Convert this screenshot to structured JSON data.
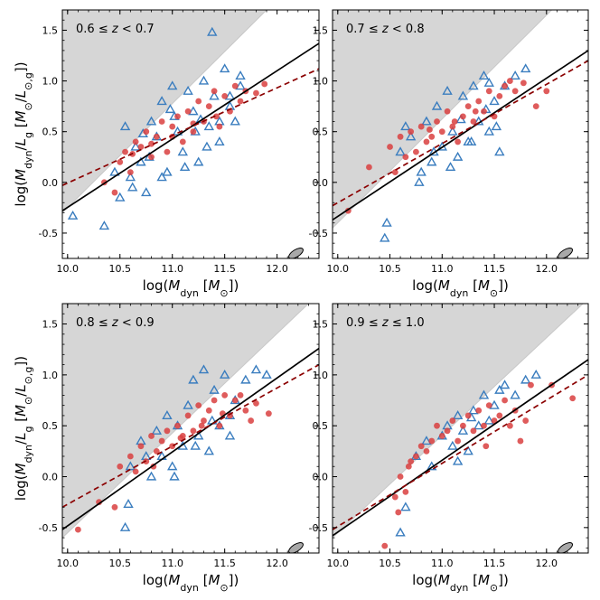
{
  "figure": {
    "xlabel": "log(M_dyn [M_⊙])",
    "ylabel": "log(M_dyn/L_g [M_⊙/L_⊙,g])"
  },
  "chart_data": [
    {
      "type": "scatter",
      "panel": "top-left",
      "title": "0.6 ≤ z < 0.7",
      "xlim": [
        9.95,
        12.4
      ],
      "ylim": [
        -0.75,
        1.7
      ],
      "xticks": [
        "10.0",
        "10.5",
        "11.0",
        "11.5",
        "12.0"
      ],
      "yticks": [
        "-0.5",
        "0.0",
        "0.5",
        "1.0",
        "1.5"
      ],
      "grey_region_boundary": {
        "x": [
          9.95,
          11.9
        ],
        "y": [
          -0.3,
          1.7
        ]
      },
      "fit_black_solid": {
        "x": [
          9.95,
          12.4
        ],
        "y": [
          -0.28,
          1.37
        ]
      },
      "fit_red_dashed": {
        "x": [
          9.95,
          12.4
        ],
        "y": [
          -0.03,
          1.12
        ]
      },
      "error_ellipse": {
        "x": 12.18,
        "y": -0.7
      },
      "series": [
        {
          "name": "blue triangles",
          "marker": "open-triangle",
          "color": "#3a7dbf",
          "x": [
            10.05,
            10.35,
            10.5,
            10.55,
            10.6,
            10.65,
            10.7,
            10.75,
            10.8,
            10.85,
            10.9,
            10.95,
            11.0,
            11.05,
            11.1,
            11.15,
            11.2,
            11.25,
            11.3,
            11.35,
            11.4,
            11.45,
            11.5,
            11.55,
            11.6,
            11.65,
            10.45,
            10.62,
            10.78,
            10.9,
            11.02,
            11.12,
            11.22,
            11.33,
            11.45,
            11.55,
            11.38,
            10.72,
            10.98,
            11.27,
            11.65
          ],
          "y": [
            -0.33,
            -0.43,
            -0.15,
            0.55,
            0.05,
            0.35,
            0.2,
            -0.1,
            0.6,
            0.45,
            0.8,
            0.1,
            0.95,
            0.5,
            0.3,
            0.9,
            0.7,
            0.2,
            1.0,
            0.55,
            0.85,
            0.4,
            1.12,
            0.75,
            0.6,
            0.95,
            0.1,
            -0.05,
            0.25,
            0.05,
            0.65,
            0.15,
            0.5,
            0.35,
            0.6,
            0.85,
            1.48,
            0.48,
            0.72,
            0.62,
            1.05
          ]
        },
        {
          "name": "red circles",
          "marker": "filled-circle",
          "color": "#d94040",
          "x": [
            10.35,
            10.45,
            10.5,
            10.55,
            10.6,
            10.65,
            10.7,
            10.75,
            10.8,
            10.85,
            10.9,
            10.95,
            11.0,
            11.05,
            11.1,
            11.15,
            11.2,
            11.25,
            11.3,
            11.35,
            11.4,
            11.45,
            11.5,
            11.55,
            11.6,
            11.65,
            11.7,
            11.8,
            11.88,
            10.62,
            10.8,
            11.0,
            11.2,
            11.42
          ],
          "y": [
            0.0,
            -0.1,
            0.2,
            0.3,
            0.1,
            0.4,
            0.35,
            0.5,
            0.25,
            0.45,
            0.6,
            0.3,
            0.55,
            0.65,
            0.4,
            0.7,
            0.5,
            0.8,
            0.6,
            0.75,
            0.9,
            0.55,
            0.85,
            0.7,
            0.95,
            0.8,
            0.9,
            0.88,
            0.97,
            0.28,
            0.38,
            0.45,
            0.58,
            0.65
          ]
        }
      ]
    },
    {
      "type": "scatter",
      "panel": "top-right",
      "title": "0.7 ≤ z < 0.8",
      "xlim": [
        9.95,
        12.4
      ],
      "ylim": [
        -0.75,
        1.7
      ],
      "xticks": [
        "10.0",
        "10.5",
        "11.0",
        "11.5",
        "12.0"
      ],
      "yticks": [
        "-0.5",
        "0.0",
        "0.5",
        "1.0",
        "1.5"
      ],
      "grey_region_boundary": {
        "x": [
          9.95,
          12.05
        ],
        "y": [
          -0.45,
          1.7
        ]
      },
      "fit_black_solid": {
        "x": [
          9.95,
          12.4
        ],
        "y": [
          -0.37,
          1.3
        ]
      },
      "fit_red_dashed": {
        "x": [
          9.95,
          12.4
        ],
        "y": [
          -0.23,
          1.2
        ]
      },
      "error_ellipse": {
        "x": 12.18,
        "y": -0.7
      },
      "series": [
        {
          "name": "blue triangles",
          "marker": "open-triangle",
          "color": "#3a7dbf",
          "x": [
            10.45,
            10.47,
            10.6,
            10.7,
            10.8,
            10.85,
            10.9,
            10.95,
            11.0,
            11.05,
            11.1,
            11.15,
            11.2,
            11.25,
            11.3,
            11.35,
            11.4,
            11.45,
            11.5,
            11.55,
            11.6,
            11.7,
            11.8,
            10.65,
            10.78,
            10.92,
            11.08,
            11.18,
            11.28,
            11.42,
            11.52,
            11.45
          ],
          "y": [
            -0.55,
            -0.4,
            0.3,
            0.45,
            0.1,
            0.6,
            0.2,
            0.75,
            0.35,
            0.9,
            0.5,
            0.25,
            0.85,
            0.4,
            0.95,
            0.6,
            1.05,
            0.5,
            0.8,
            0.3,
            0.95,
            1.05,
            1.12,
            0.55,
            0.0,
            0.3,
            0.15,
            0.62,
            0.4,
            0.72,
            0.55,
            0.98
          ]
        },
        {
          "name": "red circles",
          "marker": "filled-circle",
          "color": "#d94040",
          "x": [
            10.1,
            10.3,
            10.5,
            10.55,
            10.6,
            10.65,
            10.7,
            10.75,
            10.8,
            10.85,
            10.9,
            10.95,
            11.0,
            11.05,
            11.1,
            11.15,
            11.2,
            11.25,
            11.3,
            11.35,
            11.4,
            11.45,
            11.5,
            11.55,
            11.6,
            11.65,
            11.7,
            11.78,
            11.9,
            12.0,
            10.88,
            11.12,
            11.32
          ],
          "y": [
            -0.28,
            0.15,
            0.35,
            0.1,
            0.45,
            0.25,
            0.5,
            0.3,
            0.55,
            0.4,
            0.45,
            0.6,
            0.5,
            0.7,
            0.55,
            0.4,
            0.65,
            0.75,
            0.6,
            0.8,
            0.7,
            0.9,
            0.65,
            0.85,
            0.95,
            1.0,
            0.9,
            0.98,
            0.75,
            0.9,
            0.52,
            0.6,
            0.7
          ]
        }
      ]
    },
    {
      "type": "scatter",
      "panel": "bottom-left",
      "title": "0.8 ≤ z < 0.9",
      "xlim": [
        9.95,
        12.4
      ],
      "ylim": [
        -0.75,
        1.7
      ],
      "xticks": [
        "10.0",
        "10.5",
        "11.0",
        "11.5",
        "12.0"
      ],
      "yticks": [
        "-0.5",
        "0.0",
        "0.5",
        "1.0",
        "1.5"
      ],
      "grey_region_boundary": {
        "x": [
          9.95,
          12.3
        ],
        "y": [
          -0.6,
          1.7
        ]
      },
      "fit_black_solid": {
        "x": [
          9.95,
          12.4
        ],
        "y": [
          -0.52,
          1.26
        ]
      },
      "fit_red_dashed": {
        "x": [
          9.95,
          12.4
        ],
        "y": [
          -0.3,
          1.1
        ]
      },
      "error_ellipse": {
        "x": 12.18,
        "y": -0.7
      },
      "series": [
        {
          "name": "blue triangles",
          "marker": "open-triangle",
          "color": "#3a7dbf",
          "x": [
            10.55,
            10.58,
            10.6,
            10.7,
            10.8,
            10.85,
            10.9,
            10.95,
            11.0,
            11.05,
            11.1,
            11.15,
            11.2,
            11.25,
            11.3,
            11.35,
            11.4,
            11.45,
            11.5,
            11.55,
            11.6,
            11.7,
            11.8,
            11.9,
            10.75,
            11.02,
            11.22,
            11.38,
            11.55
          ],
          "y": [
            -0.5,
            -0.27,
            0.1,
            0.35,
            0.0,
            0.45,
            0.2,
            0.6,
            0.1,
            0.5,
            0.3,
            0.7,
            0.95,
            0.4,
            1.05,
            0.25,
            0.85,
            0.5,
            1.0,
            0.6,
            0.75,
            0.95,
            1.05,
            1.0,
            0.2,
            0.0,
            0.3,
            0.55,
            0.4
          ]
        },
        {
          "name": "red circles",
          "marker": "filled-circle",
          "color": "#d94040",
          "x": [
            10.1,
            10.3,
            10.45,
            10.5,
            10.6,
            10.65,
            10.7,
            10.75,
            10.8,
            10.85,
            10.9,
            10.95,
            11.0,
            11.05,
            11.1,
            11.15,
            11.2,
            11.25,
            11.3,
            11.35,
            11.4,
            11.45,
            11.5,
            11.55,
            11.6,
            11.65,
            11.7,
            11.75,
            11.8,
            11.92,
            10.82,
            11.08,
            11.28,
            11.48
          ],
          "y": [
            -0.52,
            -0.25,
            -0.3,
            0.1,
            0.2,
            0.05,
            0.3,
            0.15,
            0.4,
            0.25,
            0.35,
            0.45,
            0.3,
            0.5,
            0.4,
            0.6,
            0.45,
            0.7,
            0.55,
            0.65,
            0.75,
            0.5,
            0.8,
            0.6,
            0.75,
            0.8,
            0.65,
            0.55,
            0.72,
            0.62,
            0.1,
            0.38,
            0.5,
            0.62
          ]
        }
      ]
    },
    {
      "type": "scatter",
      "panel": "bottom-right",
      "title": "0.9 ≤ z ≤ 1.0",
      "xlim": [
        9.95,
        12.4
      ],
      "ylim": [
        -0.75,
        1.7
      ],
      "xticks": [
        "10.0",
        "10.5",
        "11.0",
        "11.5",
        "12.0"
      ],
      "yticks": [
        "-0.5",
        "0.0",
        "0.5",
        "1.0",
        "1.5"
      ],
      "grey_region_boundary": {
        "x": [
          9.95,
          12.35
        ],
        "y": [
          -0.6,
          1.7
        ]
      },
      "fit_black_solid": {
        "x": [
          9.95,
          12.4
        ],
        "y": [
          -0.58,
          1.15
        ]
      },
      "fit_red_dashed": {
        "x": [
          9.95,
          12.4
        ],
        "y": [
          -0.52,
          1.0
        ]
      },
      "error_ellipse": {
        "x": 12.18,
        "y": -0.7
      },
      "series": [
        {
          "name": "blue triangles",
          "marker": "open-triangle",
          "color": "#3a7dbf",
          "x": [
            10.6,
            10.65,
            10.75,
            10.85,
            10.9,
            11.0,
            11.05,
            11.1,
            11.15,
            11.2,
            11.25,
            11.3,
            11.35,
            11.4,
            11.45,
            11.5,
            11.55,
            11.6,
            11.7,
            11.8,
            11.9,
            11.15,
            11.28
          ],
          "y": [
            -0.55,
            -0.3,
            0.2,
            0.35,
            0.1,
            0.4,
            0.5,
            0.3,
            0.6,
            0.45,
            0.25,
            0.65,
            0.5,
            0.8,
            0.55,
            0.7,
            0.85,
            0.9,
            0.8,
            0.95,
            1.0,
            0.15,
            0.58
          ]
        },
        {
          "name": "red circles",
          "marker": "filled-circle",
          "color": "#d94040",
          "x": [
            10.45,
            10.55,
            10.6,
            10.65,
            10.7,
            10.75,
            10.8,
            10.85,
            10.9,
            10.95,
            11.0,
            11.05,
            11.1,
            11.15,
            11.2,
            11.25,
            11.3,
            11.35,
            11.4,
            11.45,
            11.5,
            11.55,
            11.6,
            11.65,
            11.7,
            11.75,
            11.8,
            11.85,
            12.05,
            12.25,
            10.68,
            10.58,
            11.42
          ],
          "y": [
            -0.68,
            -0.2,
            0.0,
            -0.15,
            0.15,
            0.2,
            0.3,
            0.25,
            0.35,
            0.5,
            0.4,
            0.45,
            0.55,
            0.35,
            0.5,
            0.6,
            0.45,
            0.65,
            0.5,
            0.7,
            0.55,
            0.6,
            0.75,
            0.5,
            0.65,
            0.35,
            0.55,
            0.9,
            0.9,
            0.77,
            0.1,
            -0.35,
            0.3
          ]
        }
      ]
    }
  ]
}
